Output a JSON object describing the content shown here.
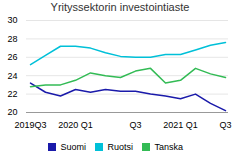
{
  "chart_data": {
    "type": "line",
    "title": "Yrityssektorin investointiaste",
    "categories": [
      "2019Q3",
      null,
      null,
      "2020 Q1",
      null,
      null,
      null,
      "Q3",
      null,
      null,
      "2021 Q1",
      null,
      null,
      "Q3"
    ],
    "series": [
      {
        "name": "Suomi",
        "color": "#1a1aaa",
        "values": [
          23.2,
          22.2,
          21.8,
          22.5,
          22.2,
          22.5,
          22.3,
          22.3,
          22.0,
          21.8,
          21.5,
          22.0,
          21.0,
          20.2
        ]
      },
      {
        "name": "Ruotsi",
        "color": "#00c0d8",
        "values": [
          25.2,
          26.2,
          27.2,
          27.2,
          27.0,
          26.5,
          26.1,
          26.0,
          26.0,
          26.3,
          26.3,
          26.8,
          27.3,
          27.6
        ]
      },
      {
        "name": "Tanska",
        "color": "#33bb55",
        "values": [
          22.8,
          23.0,
          23.0,
          23.5,
          24.3,
          24.0,
          23.8,
          24.5,
          24.8,
          23.2,
          23.5,
          24.8,
          24.2,
          23.8
        ]
      }
    ],
    "ylim": [
      20,
      30
    ],
    "yticks": [
      20,
      22,
      24,
      26,
      28,
      30
    ],
    "grid": true,
    "legend": "bottom"
  }
}
